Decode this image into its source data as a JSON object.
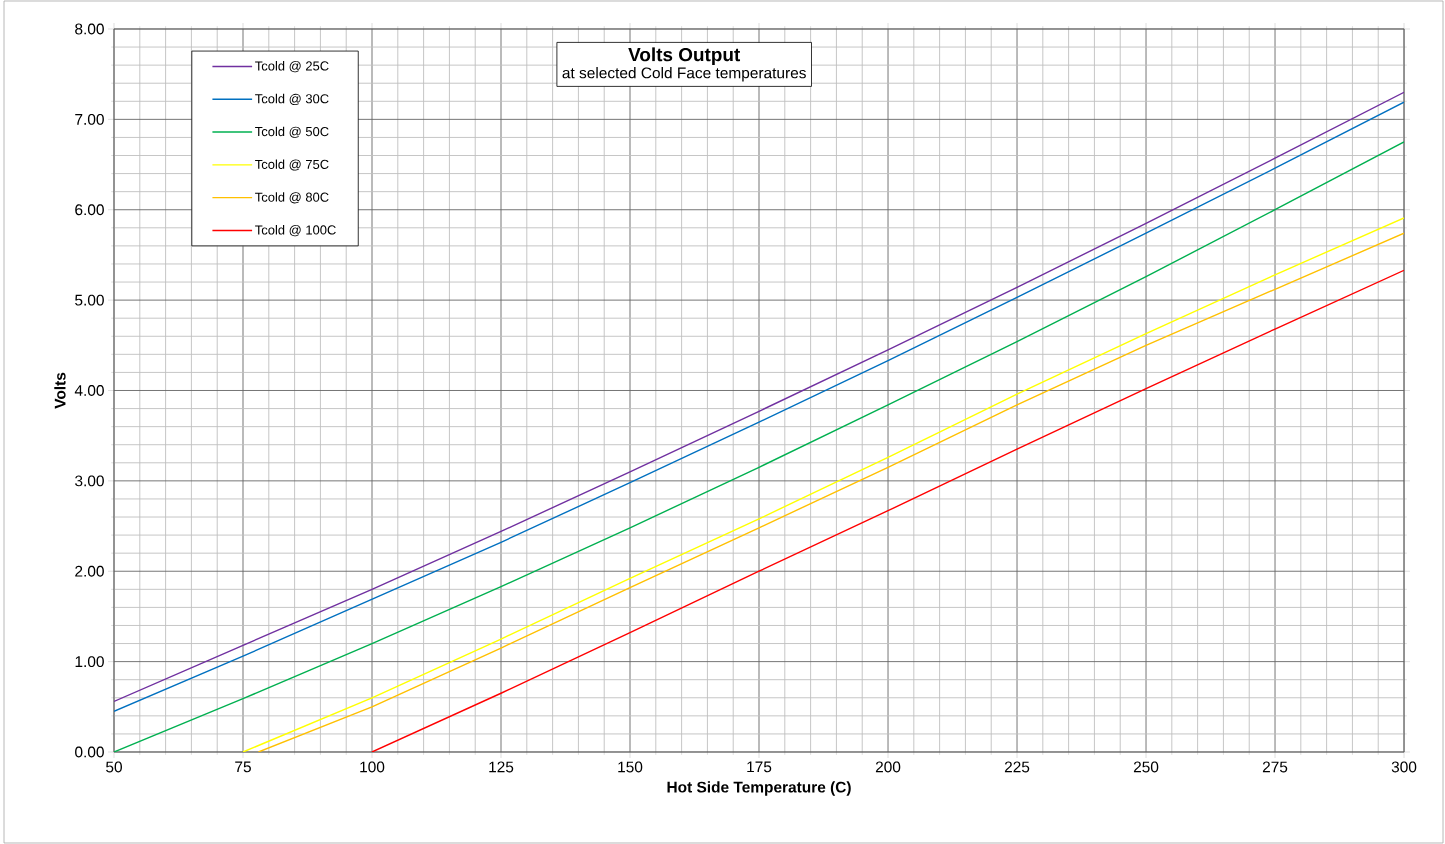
{
  "chart_data": {
    "type": "line",
    "title": "Volts Output",
    "subtitle": "at selected Cold Face temperatures",
    "xlabel": "Hot Side Temperature (C)",
    "ylabel": "Volts",
    "xlim": [
      50,
      300
    ],
    "xticks": [
      50,
      75,
      100,
      125,
      150,
      175,
      200,
      225,
      250,
      275,
      300
    ],
    "ylim": [
      0,
      8
    ],
    "yticks": [
      {
        "value": 0,
        "label": "0.00"
      },
      {
        "value": 1,
        "label": "1.00"
      },
      {
        "value": 2,
        "label": "2.00"
      },
      {
        "value": 3,
        "label": "3.00"
      },
      {
        "value": 4,
        "label": "4.00"
      },
      {
        "value": 5,
        "label": "5.00"
      },
      {
        "value": 6,
        "label": "6.00"
      },
      {
        "value": 7,
        "label": "7.00"
      },
      {
        "value": 8,
        "label": "8.00"
      }
    ],
    "grid": true,
    "legend": "top left",
    "marker": "none",
    "line_style": "solid",
    "series": [
      {
        "name": "Tcold @ 25C",
        "color": "#7030a0",
        "x": [
          50,
          75,
          100,
          125,
          150,
          175,
          200,
          225,
          250,
          275,
          300
        ],
        "values": [
          0.56,
          1.18,
          1.8,
          2.44,
          3.1,
          3.77,
          4.45,
          5.14,
          5.85,
          6.57,
          7.3
        ]
      },
      {
        "name": "Tcold @ 30C",
        "color": "#0070c0",
        "x": [
          50,
          75,
          100,
          125,
          150,
          175,
          200,
          225,
          250,
          275,
          300
        ],
        "values": [
          0.45,
          1.06,
          1.69,
          2.32,
          2.98,
          3.65,
          4.33,
          5.03,
          5.74,
          6.46,
          7.19
        ]
      },
      {
        "name": "Tcold @ 50C",
        "color": "#00b050",
        "x": [
          50,
          75,
          100,
          125,
          150,
          175,
          200,
          225,
          250,
          275,
          300
        ],
        "values": [
          0.0,
          0.59,
          1.2,
          1.83,
          2.48,
          3.15,
          3.84,
          4.54,
          5.26,
          6.0,
          6.75
        ]
      },
      {
        "name": "Tcold @ 75C",
        "color": "#ffff00",
        "x": [
          75,
          100,
          125,
          150,
          175,
          200,
          225,
          250,
          275,
          300
        ],
        "values": [
          0.0,
          0.6,
          1.25,
          1.92,
          2.58,
          3.26,
          3.96,
          4.63,
          5.28,
          5.91
        ]
      },
      {
        "name": "Tcold @ 80C",
        "color": "#ffc000",
        "x": [
          78,
          100,
          125,
          150,
          175,
          200,
          225,
          250,
          275,
          300
        ],
        "values": [
          0.0,
          0.5,
          1.15,
          1.82,
          2.48,
          3.15,
          3.84,
          4.5,
          5.12,
          5.74
        ]
      },
      {
        "name": "Tcold @ 100C",
        "color": "#ff0000",
        "x": [
          100,
          125,
          150,
          175,
          200,
          225,
          250,
          275,
          300
        ],
        "values": [
          0.0,
          0.65,
          1.32,
          2.0,
          2.67,
          3.35,
          4.02,
          4.68,
          5.33
        ]
      }
    ]
  }
}
